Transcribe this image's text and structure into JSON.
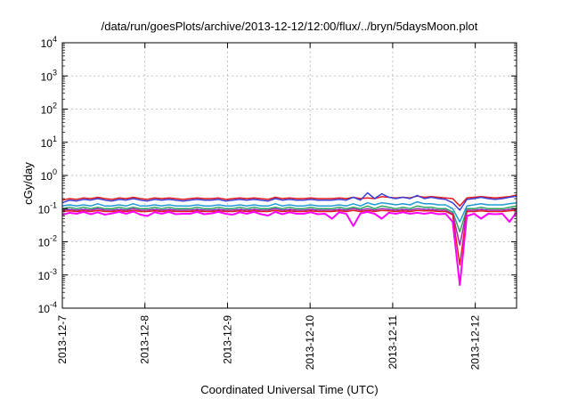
{
  "chart_data": {
    "type": "line",
    "title": "/data/run/goesPlots/archive/2013-12-12/12:00/flux/../bryn/5daysMoon.plot",
    "xlabel": "Coordinated Universal Time (UTC)",
    "ylabel": "cGy/day",
    "yscale": "log",
    "ylim": [
      0.0001,
      10000
    ],
    "xlim": [
      "2013-12-07 00:00",
      "2013-12-12 12:00"
    ],
    "x_ticks": [
      "2013-12-7",
      "2013-12-8",
      "2013-12-9",
      "2013-12-10",
      "2013-12-11",
      "2013-12-12"
    ],
    "y_ticks": [
      {
        "value": 0.0001,
        "base": "10",
        "exp": "-4"
      },
      {
        "value": 0.001,
        "base": "10",
        "exp": "-3"
      },
      {
        "value": 0.01,
        "base": "10",
        "exp": "-2"
      },
      {
        "value": 0.1,
        "base": "10",
        "exp": "-1"
      },
      {
        "value": 1,
        "base": "10",
        "exp": "0"
      },
      {
        "value": 10,
        "base": "10",
        "exp": "1"
      },
      {
        "value": 100,
        "base": "10",
        "exp": "2"
      },
      {
        "value": 1000,
        "base": "10",
        "exp": "3"
      },
      {
        "value": 10000,
        "base": "10",
        "exp": "4"
      }
    ],
    "grid": true,
    "legend": "none",
    "series": [
      {
        "color": "#e41a1c",
        "values": [
          0.18,
          0.2,
          0.19,
          0.21,
          0.2,
          0.22,
          0.2,
          0.19,
          0.21,
          0.2,
          0.22,
          0.2,
          0.19,
          0.21,
          0.2,
          0.21,
          0.2,
          0.19,
          0.2,
          0.21,
          0.2,
          0.2,
          0.21,
          0.19,
          0.2,
          0.21,
          0.2,
          0.21,
          0.2,
          0.19,
          0.22,
          0.2,
          0.21,
          0.2,
          0.2,
          0.21,
          0.2,
          0.2,
          0.2,
          0.21,
          0.2,
          0.22,
          0.2,
          0.21,
          0.2,
          0.23,
          0.22,
          0.21,
          0.22,
          0.21,
          0.24,
          0.22,
          0.23,
          0.22,
          0.21,
          0.2,
          0.12,
          0.21,
          0.22,
          0.23,
          0.22,
          0.21,
          0.22,
          0.23,
          0.26
        ]
      },
      {
        "color": "#3a3fd9",
        "values": [
          0.15,
          0.18,
          0.17,
          0.19,
          0.18,
          0.2,
          0.18,
          0.17,
          0.19,
          0.18,
          0.2,
          0.18,
          0.17,
          0.19,
          0.18,
          0.19,
          0.18,
          0.17,
          0.18,
          0.19,
          0.18,
          0.18,
          0.19,
          0.17,
          0.18,
          0.19,
          0.18,
          0.19,
          0.18,
          0.17,
          0.2,
          0.18,
          0.19,
          0.18,
          0.18,
          0.19,
          0.18,
          0.18,
          0.18,
          0.19,
          0.18,
          0.22,
          0.18,
          0.3,
          0.2,
          0.28,
          0.22,
          0.2,
          0.22,
          0.2,
          0.25,
          0.2,
          0.22,
          0.2,
          0.19,
          0.15,
          0.09,
          0.19,
          0.2,
          0.22,
          0.2,
          0.19,
          0.2,
          0.22,
          0.24
        ]
      },
      {
        "color": "#1e9bd7",
        "values": [
          0.12,
          0.13,
          0.12,
          0.13,
          0.12,
          0.14,
          0.12,
          0.12,
          0.13,
          0.12,
          0.14,
          0.12,
          0.12,
          0.13,
          0.12,
          0.13,
          0.12,
          0.12,
          0.12,
          0.13,
          0.12,
          0.12,
          0.13,
          0.12,
          0.12,
          0.13,
          0.12,
          0.13,
          0.12,
          0.12,
          0.14,
          0.12,
          0.13,
          0.12,
          0.12,
          0.13,
          0.12,
          0.12,
          0.12,
          0.13,
          0.12,
          0.14,
          0.12,
          0.15,
          0.13,
          0.15,
          0.14,
          0.13,
          0.14,
          0.13,
          0.16,
          0.14,
          0.14,
          0.13,
          0.13,
          0.1,
          0.04,
          0.12,
          0.13,
          0.14,
          0.13,
          0.13,
          0.13,
          0.14,
          0.15
        ]
      },
      {
        "color": "#2ca25f",
        "values": [
          0.1,
          0.11,
          0.1,
          0.11,
          0.1,
          0.11,
          0.1,
          0.1,
          0.11,
          0.1,
          0.11,
          0.1,
          0.1,
          0.11,
          0.1,
          0.11,
          0.1,
          0.1,
          0.1,
          0.11,
          0.1,
          0.1,
          0.11,
          0.1,
          0.1,
          0.11,
          0.1,
          0.11,
          0.1,
          0.1,
          0.11,
          0.1,
          0.11,
          0.1,
          0.1,
          0.11,
          0.1,
          0.1,
          0.1,
          0.11,
          0.1,
          0.11,
          0.1,
          0.12,
          0.1,
          0.12,
          0.11,
          0.1,
          0.11,
          0.1,
          0.12,
          0.11,
          0.11,
          0.1,
          0.1,
          0.08,
          0.02,
          0.1,
          0.1,
          0.11,
          0.1,
          0.1,
          0.1,
          0.11,
          0.12
        ]
      },
      {
        "color": "#9c27b0",
        "values": [
          0.09,
          0.095,
          0.09,
          0.095,
          0.09,
          0.1,
          0.09,
          0.09,
          0.095,
          0.09,
          0.1,
          0.09,
          0.09,
          0.095,
          0.09,
          0.095,
          0.09,
          0.09,
          0.09,
          0.095,
          0.09,
          0.09,
          0.095,
          0.09,
          0.09,
          0.095,
          0.09,
          0.095,
          0.09,
          0.09,
          0.1,
          0.09,
          0.095,
          0.09,
          0.09,
          0.095,
          0.09,
          0.09,
          0.09,
          0.095,
          0.09,
          0.1,
          0.09,
          0.1,
          0.09,
          0.1,
          0.095,
          0.09,
          0.095,
          0.09,
          0.1,
          0.095,
          0.095,
          0.09,
          0.09,
          0.07,
          0.008,
          0.09,
          0.09,
          0.095,
          0.09,
          0.09,
          0.09,
          0.095,
          0.1
        ]
      },
      {
        "color": "#e41a1c",
        "values": [
          0.082,
          0.086,
          0.082,
          0.086,
          0.082,
          0.088,
          0.082,
          0.082,
          0.086,
          0.082,
          0.088,
          0.082,
          0.082,
          0.086,
          0.082,
          0.086,
          0.082,
          0.082,
          0.082,
          0.086,
          0.082,
          0.082,
          0.086,
          0.082,
          0.082,
          0.086,
          0.082,
          0.086,
          0.082,
          0.082,
          0.088,
          0.082,
          0.086,
          0.082,
          0.082,
          0.086,
          0.082,
          0.082,
          0.082,
          0.086,
          0.082,
          0.088,
          0.082,
          0.088,
          0.082,
          0.088,
          0.086,
          0.082,
          0.086,
          0.082,
          0.088,
          0.086,
          0.086,
          0.082,
          0.082,
          0.065,
          0.002,
          0.082,
          0.082,
          0.086,
          0.082,
          0.082,
          0.082,
          0.086,
          0.09
        ]
      },
      {
        "color": "#ff00ff",
        "values": [
          0.065,
          0.075,
          0.07,
          0.08,
          0.068,
          0.078,
          0.066,
          0.072,
          0.08,
          0.07,
          0.082,
          0.066,
          0.06,
          0.078,
          0.07,
          0.08,
          0.068,
          0.07,
          0.07,
          0.08,
          0.068,
          0.072,
          0.08,
          0.07,
          0.066,
          0.078,
          0.07,
          0.08,
          0.068,
          0.062,
          0.08,
          0.068,
          0.078,
          0.07,
          0.07,
          0.078,
          0.068,
          0.07,
          0.05,
          0.078,
          0.07,
          0.03,
          0.072,
          0.08,
          0.07,
          0.05,
          0.075,
          0.07,
          0.078,
          0.07,
          0.075,
          0.07,
          0.075,
          0.068,
          0.07,
          0.04,
          0.0005,
          0.06,
          0.07,
          0.05,
          0.07,
          0.068,
          0.07,
          0.04,
          0.078
        ]
      }
    ]
  }
}
